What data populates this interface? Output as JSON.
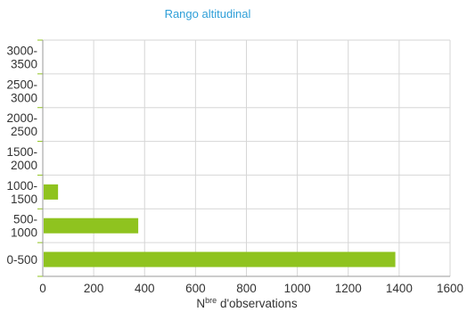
{
  "chart_data": {
    "type": "bar",
    "orientation": "horizontal",
    "title": "Rango altitudinal",
    "xlabel_main": "N",
    "xlabel_sup": "bre",
    "xlabel_rest": " d'observations",
    "ylabel": "",
    "categories": [
      [
        "3000-",
        "3500"
      ],
      [
        "2500-",
        "3000"
      ],
      [
        "2000-",
        "2500"
      ],
      [
        "1500-",
        "2000"
      ],
      [
        "1000-",
        "1500"
      ],
      [
        "500-",
        "1000"
      ],
      [
        "0-500"
      ]
    ],
    "values": [
      0,
      0,
      0,
      0,
      60,
      375,
      1385
    ],
    "xlim": [
      0,
      1600
    ],
    "xticks": [
      "0",
      "200",
      "400",
      "600",
      "800",
      "1000",
      "1200",
      "1400",
      "1600"
    ],
    "grid": true,
    "bar_color": "#8fc31f",
    "title_color": "#2f9fd8"
  }
}
